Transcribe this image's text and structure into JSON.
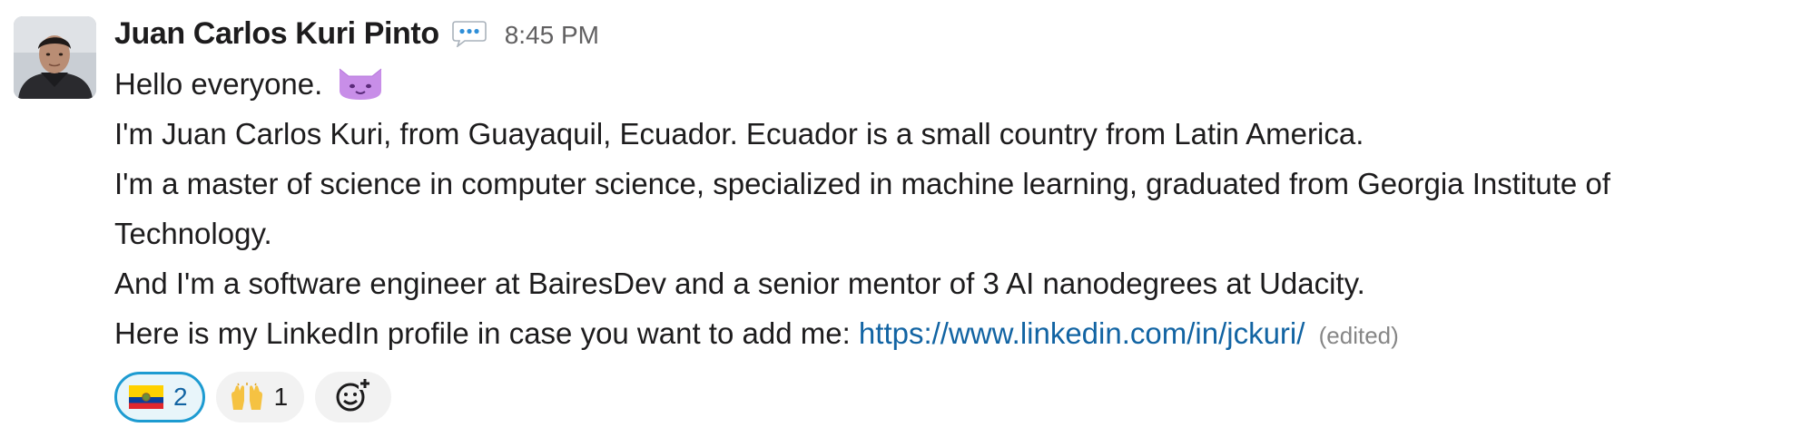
{
  "message": {
    "author": "Juan Carlos Kuri Pinto",
    "status_emoji": "speech-bubble-icon",
    "timestamp": "8:45 PM",
    "lines": [
      "Hello everyone.",
      "I'm Juan Carlos Kuri, from Guayaquil, Ecuador. Ecuador is a small country from Latin America.",
      "I'm a master of science in computer science, specialized in machine learning, graduated from Georgia Institute of",
      "Technology.",
      "And I'm a software engineer at BairesDev and a senior mentor of 3 AI nanodegrees at Udacity.",
      "Here is my LinkedIn profile in case you want to add me: "
    ],
    "inline_emoji": "purple-cat-face-icon",
    "link_text": "https://www.linkedin.com/in/jckuri/",
    "edited_label": "(edited)"
  },
  "reactions": [
    {
      "emoji": "ecuador-flag-icon",
      "count": "2",
      "active": true
    },
    {
      "emoji": "raising-hands-icon",
      "count": "1",
      "active": false
    }
  ],
  "add_reaction": {
    "icon": "add-reaction-icon"
  },
  "colors": {
    "link": "#1264a3",
    "active_reaction_border": "#1d9bd1",
    "timestamp": "#616061"
  }
}
